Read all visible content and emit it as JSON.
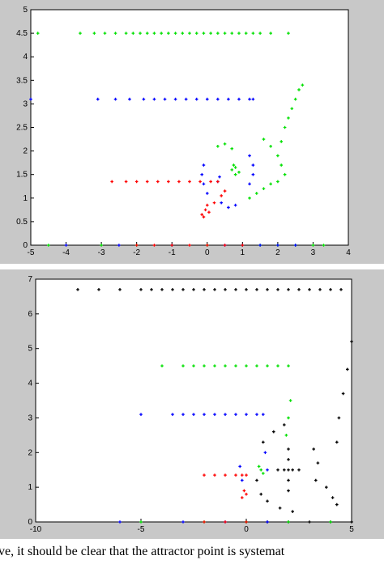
{
  "chart_data": [
    {
      "type": "scatter",
      "xlim": [
        -5,
        4
      ],
      "ylim": [
        0,
        5
      ],
      "xticks": [
        -5,
        -4,
        -3,
        -2,
        -1,
        0,
        1,
        2,
        3,
        4
      ],
      "yticks": [
        0,
        0.5,
        1,
        1.5,
        2,
        2.5,
        3,
        3.5,
        4,
        4.5,
        5
      ],
      "series": [
        {
          "color": "#00e000",
          "x": [
            -4.8,
            -3.6,
            -3.2,
            -2.9,
            -2.6,
            -2.3,
            -2.1,
            -1.9,
            -1.7,
            -1.5,
            -1.3,
            -1.1,
            -0.9,
            -0.7,
            -0.5,
            -0.3,
            -0.1,
            0.1,
            0.3,
            0.5,
            0.7,
            0.9,
            1.1,
            1.3,
            1.5,
            1.8,
            2.3,
            2.1,
            2.2,
            2.3,
            2.4,
            2.5,
            2.6,
            2.7,
            1.6,
            1.8,
            2.0,
            2.1,
            2.2,
            1.2,
            1.4,
            1.6,
            1.8,
            2.0,
            0.7,
            0.8,
            0.9,
            0.8,
            0.75,
            0.3,
            0.5,
            0.7,
            -4.5,
            -3,
            -2,
            -1,
            0,
            1,
            1.5,
            2,
            2.5,
            3,
            3.3
          ],
          "y": [
            4.5,
            4.5,
            4.5,
            4.5,
            4.5,
            4.5,
            4.5,
            4.5,
            4.5,
            4.5,
            4.5,
            4.5,
            4.5,
            4.5,
            4.5,
            4.5,
            4.5,
            4.5,
            4.5,
            4.5,
            4.5,
            4.5,
            4.5,
            4.5,
            4.5,
            4.5,
            4.5,
            2.2,
            2.5,
            2.7,
            2.9,
            3.1,
            3.3,
            3.4,
            2.25,
            2.1,
            1.9,
            1.7,
            1.5,
            1.0,
            1.1,
            1.2,
            1.3,
            1.35,
            1.6,
            1.65,
            1.55,
            1.5,
            1.7,
            2.1,
            2.15,
            2.05,
            0,
            0,
            0,
            0,
            0,
            0,
            0,
            0,
            0,
            0,
            0
          ]
        },
        {
          "color": "#0000ff",
          "x": [
            -5,
            -3.1,
            -2.6,
            -2.2,
            -1.8,
            -1.5,
            -1.2,
            -0.9,
            -0.6,
            -0.3,
            0,
            0.3,
            0.6,
            0.9,
            1.2,
            1.3,
            1.2,
            1.3,
            1.3,
            1.2,
            -0.1,
            -0.15,
            -0.1,
            0,
            0.4,
            0.6,
            0.8,
            0.3,
            0.35,
            -4,
            -2.5,
            -1,
            0.5,
            1,
            1.5,
            2,
            2.5
          ],
          "y": [
            3.1,
            3.1,
            3.1,
            3.1,
            3.1,
            3.1,
            3.1,
            3.1,
            3.1,
            3.1,
            3.1,
            3.1,
            3.1,
            3.1,
            3.1,
            3.1,
            1.9,
            1.7,
            1.5,
            1.3,
            1.7,
            1.5,
            1.3,
            1.1,
            0.9,
            0.8,
            0.85,
            1.35,
            1.45,
            0,
            0,
            0,
            0,
            0,
            0,
            0,
            0
          ]
        },
        {
          "color": "#ff0000",
          "x": [
            -2.7,
            -2.3,
            -2,
            -1.7,
            -1.4,
            -1.1,
            -0.8,
            -0.5,
            -0.2,
            0.1,
            0.3,
            -0.1,
            -0.05,
            0,
            0.05,
            -0.15,
            0.2,
            0.4,
            0.5,
            -2,
            -1.5,
            -1,
            -0.5,
            0,
            0.5,
            1
          ],
          "y": [
            1.35,
            1.35,
            1.35,
            1.35,
            1.35,
            1.35,
            1.35,
            1.35,
            1.35,
            1.35,
            1.35,
            0.6,
            0.75,
            0.85,
            0.7,
            0.65,
            0.9,
            1.05,
            1.15,
            0,
            0,
            0,
            0,
            0,
            0,
            0
          ]
        }
      ]
    },
    {
      "type": "scatter",
      "xlim": [
        -10,
        5
      ],
      "ylim": [
        0,
        7
      ],
      "xticks": [
        -10,
        -5,
        0,
        5
      ],
      "yticks": [
        0,
        1,
        2,
        3,
        4,
        5,
        6,
        7
      ],
      "series": [
        {
          "color": "#000000",
          "x": [
            -8,
            -7,
            -6,
            -5,
            -4.5,
            -4,
            -3.5,
            -3,
            -2.5,
            -2,
            -1.5,
            -1,
            -0.5,
            0,
            0.5,
            1,
            1.5,
            2,
            2.5,
            3,
            3.5,
            4,
            4.5,
            4.3,
            4.4,
            4.6,
            4.8,
            5,
            2,
            1.8,
            2.2,
            2,
            2,
            1.5,
            2.5,
            2,
            2,
            0.8,
            1.3,
            1.8,
            3.2,
            3.4,
            3.3,
            1,
            1.6,
            2.2,
            3.8,
            4.1,
            4.3,
            0.5,
            0.7,
            0,
            1,
            2,
            3,
            4,
            5
          ],
          "y": [
            6.7,
            6.7,
            6.7,
            6.7,
            6.7,
            6.7,
            6.7,
            6.7,
            6.7,
            6.7,
            6.7,
            6.7,
            6.7,
            6.7,
            6.7,
            6.7,
            6.7,
            6.7,
            6.7,
            6.7,
            6.7,
            6.7,
            6.7,
            2.3,
            3.0,
            3.7,
            4.4,
            5.2,
            1.5,
            1.5,
            1.5,
            1.8,
            1.2,
            1.5,
            1.5,
            2.1,
            0.9,
            2.3,
            2.6,
            2.8,
            2.1,
            1.7,
            1.2,
            0.6,
            0.4,
            0.3,
            1.0,
            0.7,
            0.5,
            1.2,
            0.8,
            0,
            0,
            0,
            0,
            0,
            0
          ]
        },
        {
          "color": "#00e000",
          "x": [
            -4,
            -3,
            -2.5,
            -2,
            -1.5,
            -1,
            -0.5,
            0,
            0.5,
            1,
            1.5,
            2,
            2.1,
            2.0,
            1.9,
            0.6,
            0.7,
            0.8,
            -5,
            -2,
            0,
            2,
            4
          ],
          "y": [
            4.5,
            4.5,
            4.5,
            4.5,
            4.5,
            4.5,
            4.5,
            4.5,
            4.5,
            4.5,
            4.5,
            4.5,
            3.5,
            3.0,
            2.5,
            1.6,
            1.5,
            1.4,
            0,
            0,
            0,
            0,
            0
          ]
        },
        {
          "color": "#0000ff",
          "x": [
            -5,
            -3.5,
            -3,
            -2.5,
            -2,
            -1.5,
            -1,
            -0.5,
            0,
            0.5,
            0.8,
            -0.3,
            -0.2,
            0.9,
            1.0,
            -6,
            -3,
            -1,
            1
          ],
          "y": [
            3.1,
            3.1,
            3.1,
            3.1,
            3.1,
            3.1,
            3.1,
            3.1,
            3.1,
            3.1,
            3.1,
            1.6,
            1.2,
            2.0,
            1.5,
            0,
            0,
            0,
            0
          ]
        },
        {
          "color": "#ff0000",
          "x": [
            -2,
            -1.5,
            -1,
            -0.5,
            -0.2,
            0,
            -0.2,
            0,
            -0.1,
            -2,
            -1,
            0
          ],
          "y": [
            1.35,
            1.35,
            1.35,
            1.35,
            1.35,
            1.35,
            0.7,
            0.8,
            0.9,
            0,
            0,
            0
          ]
        }
      ]
    }
  ],
  "caption": "ve, it should be clear that the attractor point is systemat"
}
